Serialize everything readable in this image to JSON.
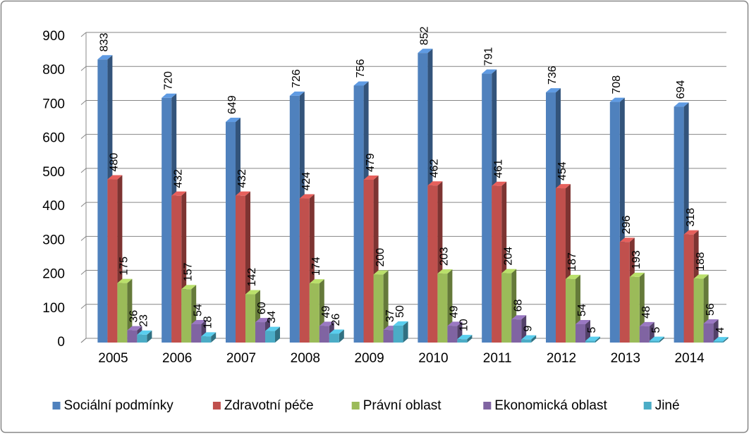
{
  "chart_data": {
    "type": "bar",
    "categories": [
      "2005",
      "2006",
      "2007",
      "2008",
      "2009",
      "2010",
      "2011",
      "2012",
      "2013",
      "2014"
    ],
    "series": [
      {
        "name": "Sociální podmínky",
        "color": "#4f81bd",
        "values": [
          833,
          720,
          649,
          726,
          756,
          852,
          791,
          736,
          708,
          694
        ]
      },
      {
        "name": "Zdravotní péče",
        "color": "#c0504d",
        "values": [
          480,
          432,
          432,
          424,
          479,
          462,
          461,
          454,
          296,
          318
        ]
      },
      {
        "name": "Právní oblast",
        "color": "#9bbb59",
        "values": [
          175,
          157,
          142,
          174,
          200,
          203,
          204,
          187,
          193,
          188
        ]
      },
      {
        "name": "Ekonomická oblast",
        "color": "#8064a2",
        "values": [
          36,
          54,
          60,
          49,
          37,
          49,
          68,
          54,
          48,
          56
        ]
      },
      {
        "name": "Jiné",
        "color": "#4bacc6",
        "values": [
          23,
          18,
          34,
          26,
          50,
          10,
          9,
          5,
          5,
          4
        ]
      }
    ],
    "ylim": [
      0,
      900
    ],
    "yticks": [
      0,
      100,
      200,
      300,
      400,
      500,
      600,
      700,
      800,
      900
    ],
    "grid": true,
    "legend": "bottom"
  }
}
